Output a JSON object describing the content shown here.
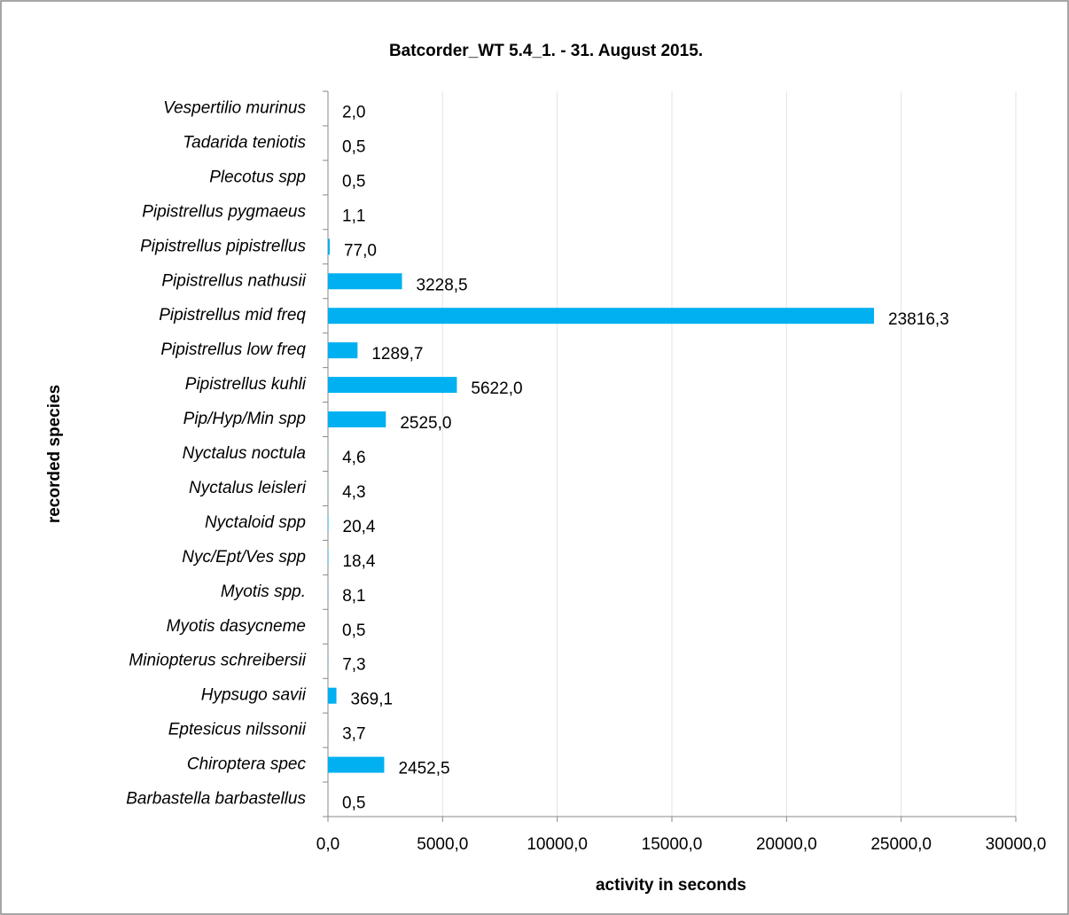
{
  "chart_data": {
    "type": "bar",
    "orientation": "horizontal",
    "title": "Batcorder_WT 5.4_1. - 31. August 2015.",
    "x_label": "activity in seconds",
    "y_label": "recorded species",
    "categories": [
      "Vespertilio murinus",
      "Tadarida teniotis",
      "Plecotus spp",
      "Pipistrellus pygmaeus",
      "Pipistrellus pipistrellus",
      "Pipistrellus nathusii",
      "Pipistrellus mid freq",
      "Pipistrellus low freq",
      "Pipistrellus kuhli",
      "Pip/Hyp/Min spp",
      "Nyctalus noctula",
      "Nyctalus leisleri",
      "Nyctaloid spp",
      "Nyc/Ept/Ves spp",
      "Myotis spp.",
      "Myotis dasycneme",
      "Miniopterus schreibersii",
      "Hypsugo savii",
      "Eptesicus nilssonii",
      "Chiroptera spec",
      "Barbastella barbastellus"
    ],
    "values": [
      2.0,
      0.5,
      0.5,
      1.1,
      77.0,
      3228.5,
      23816.3,
      1289.7,
      5622.0,
      2525.0,
      4.6,
      4.3,
      20.4,
      18.4,
      8.1,
      0.5,
      7.3,
      369.1,
      3.7,
      2452.5,
      0.5
    ],
    "value_labels": [
      "2,0",
      "0,5",
      "0,5",
      "1,1",
      "77,0",
      "3228,5",
      "23816,3",
      "1289,7",
      "5622,0",
      "2525,0",
      "4,6",
      "4,3",
      "20,4",
      "18,4",
      "8,1",
      "0,5",
      "7,3",
      "369,1",
      "3,7",
      "2452,5",
      "0,5"
    ],
    "color": "#00b0f0",
    "xlim": [
      0,
      30000
    ],
    "xticks": [
      {
        "value": 0,
        "label": "0,0"
      },
      {
        "value": 5000,
        "label": "5000,0"
      },
      {
        "value": 10000,
        "label": "10000,0"
      },
      {
        "value": 15000,
        "label": "15000,0"
      },
      {
        "value": 20000,
        "label": "20000,0"
      },
      {
        "value": 25000,
        "label": "25000,0"
      },
      {
        "value": 30000,
        "label": "30000,0"
      }
    ],
    "grid": true
  }
}
